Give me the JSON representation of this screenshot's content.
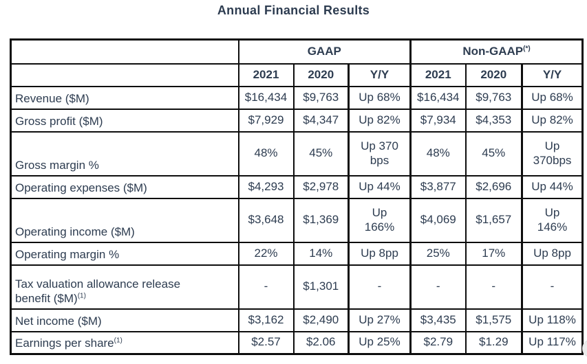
{
  "page": {
    "title": "Annual Financial Results"
  },
  "colors": {
    "text": "#2d3c50",
    "border": "#0d0d0d",
    "background": "#ffffff",
    "widget_circle": "#ececec"
  },
  "table": {
    "group_headers": [
      {
        "label": "",
        "sup": "",
        "span": 1
      },
      {
        "label": "GAAP",
        "sup": "",
        "span": 3
      },
      {
        "label": "Non-GAAP",
        "sup": "(*)",
        "span": 3
      }
    ],
    "column_headers": [
      "",
      "2021",
      "2020",
      "Y/Y",
      "2021",
      "2020",
      "Y/Y"
    ],
    "rows": [
      {
        "label": "Revenue ($M)",
        "sup": "",
        "tall": false,
        "cells": [
          "$16,434",
          "$9,763",
          "Up 68%",
          "$16,434",
          "$9,763",
          "Up 68%"
        ]
      },
      {
        "label": "Gross profit ($M)",
        "sup": "",
        "tall": false,
        "cells": [
          "$7,929",
          "$4,347",
          "Up 82%",
          "$7,934",
          "$4,353",
          "Up 82%"
        ]
      },
      {
        "label": "Gross margin %",
        "sup": "",
        "tall": true,
        "cells": [
          "48%",
          "45%",
          "Up 370\nbps",
          "48%",
          "45%",
          "Up\n370bps"
        ]
      },
      {
        "label": "Operating expenses ($M)",
        "sup": "",
        "tall": false,
        "cells": [
          "$4,293",
          "$2,978",
          "Up 44%",
          "$3,877",
          "$2,696",
          "Up 44%"
        ]
      },
      {
        "label": "Operating income ($M)",
        "sup": "",
        "tall": true,
        "cells": [
          "$3,648",
          "$1,369",
          "Up\n166%",
          "$4,069",
          "$1,657",
          "Up\n146%"
        ]
      },
      {
        "label": "Operating margin %",
        "sup": "",
        "tall": false,
        "cells": [
          "22%",
          "14%",
          "Up 8pp",
          "25%",
          "17%",
          "Up 8pp"
        ]
      },
      {
        "label": "Tax valuation allowance release\nbenefit ($M)",
        "sup": "(1)",
        "tall": true,
        "cells": [
          "-",
          "$1,301",
          "-",
          "-",
          "-",
          "-"
        ]
      },
      {
        "label": "Net income ($M)",
        "sup": "",
        "tall": false,
        "cells": [
          "$3,162",
          "$2,490",
          "Up 27%",
          "$3,435",
          "$1,575",
          "Up 118%"
        ]
      },
      {
        "label": "Earnings per share",
        "sup": "(1)",
        "tall": false,
        "cells": [
          "$2.57",
          "$2.06",
          "Up 25%",
          "$2.79",
          "$1.29",
          "Up 117%"
        ]
      }
    ]
  },
  "widget": {
    "name": "floating-widget-button"
  }
}
